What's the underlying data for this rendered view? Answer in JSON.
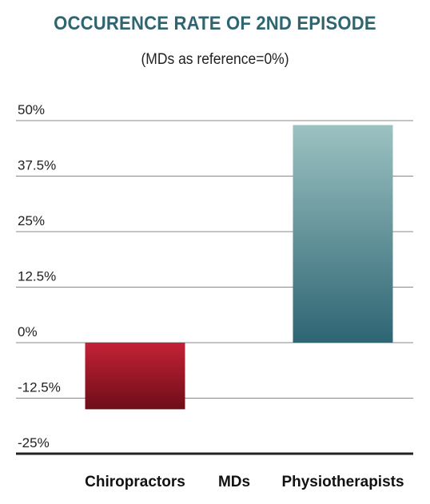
{
  "chart_data": {
    "type": "bar",
    "title": "OCCURENCE RATE OF 2ND EPISODE",
    "subtitle": "(MDs as reference=0%)",
    "categories": [
      "Chiropractors",
      "MDs",
      "Physiotherapists"
    ],
    "values": [
      -15,
      0,
      49
    ],
    "ylim": [
      -25,
      50
    ],
    "yticks": [
      50,
      37.5,
      25,
      12.5,
      0,
      -12.5,
      -25
    ],
    "ytick_labels": [
      "50%",
      "37.5%",
      "25%",
      "12.5%",
      "0%",
      "-12.5%",
      "-25%"
    ],
    "grid": true,
    "xlabel": "",
    "ylabel": "",
    "colors": {
      "negative_top": "#c42236",
      "negative_bottom": "#6e0d19",
      "positive_top": "#9cc2c2",
      "positive_bottom": "#2e6573",
      "title": "#2e6570",
      "grid": "#888888",
      "baseline": "#222222"
    }
  }
}
